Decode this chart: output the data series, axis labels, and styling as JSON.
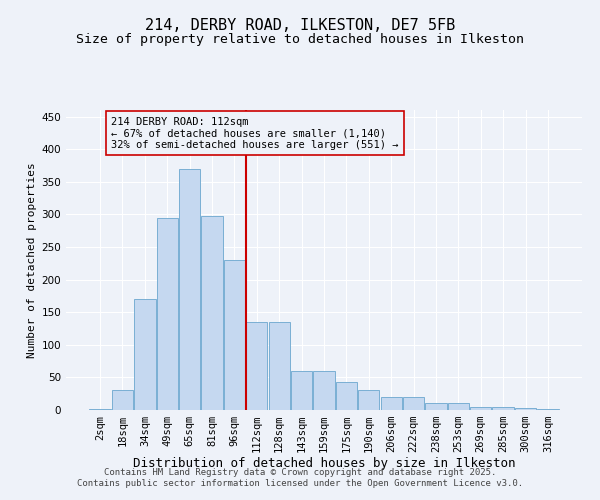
{
  "title": "214, DERBY ROAD, ILKESTON, DE7 5FB",
  "subtitle": "Size of property relative to detached houses in Ilkeston",
  "xlabel": "Distribution of detached houses by size in Ilkeston",
  "ylabel": "Number of detached properties",
  "footer_line1": "Contains HM Land Registry data © Crown copyright and database right 2025.",
  "footer_line2": "Contains public sector information licensed under the Open Government Licence v3.0.",
  "annotation_line1": "214 DERBY ROAD: 112sqm",
  "annotation_line2": "← 67% of detached houses are smaller (1,140)",
  "annotation_line3": "32% of semi-detached houses are larger (551) →",
  "bar_labels": [
    "2sqm",
    "18sqm",
    "34sqm",
    "49sqm",
    "65sqm",
    "81sqm",
    "96sqm",
    "112sqm",
    "128sqm",
    "143sqm",
    "159sqm",
    "175sqm",
    "190sqm",
    "206sqm",
    "222sqm",
    "238sqm",
    "253sqm",
    "269sqm",
    "285sqm",
    "300sqm",
    "316sqm"
  ],
  "bar_values": [
    1,
    30,
    170,
    295,
    370,
    297,
    230,
    135,
    135,
    60,
    60,
    43,
    30,
    20,
    20,
    10,
    10,
    5,
    5,
    3,
    1
  ],
  "bar_color": "#c5d8f0",
  "bar_edge_color": "#7aafd4",
  "vline_index": 7,
  "vline_color": "#cc0000",
  "annotation_box_color": "#cc0000",
  "ylim": [
    0,
    460
  ],
  "yticks": [
    0,
    50,
    100,
    150,
    200,
    250,
    300,
    350,
    400,
    450
  ],
  "bg_color": "#eef2f9",
  "grid_color": "#ffffff",
  "title_fontsize": 11,
  "subtitle_fontsize": 9.5,
  "xlabel_fontsize": 9,
  "ylabel_fontsize": 8,
  "tick_fontsize": 7.5,
  "annotation_fontsize": 7.5,
  "footer_fontsize": 6.5
}
